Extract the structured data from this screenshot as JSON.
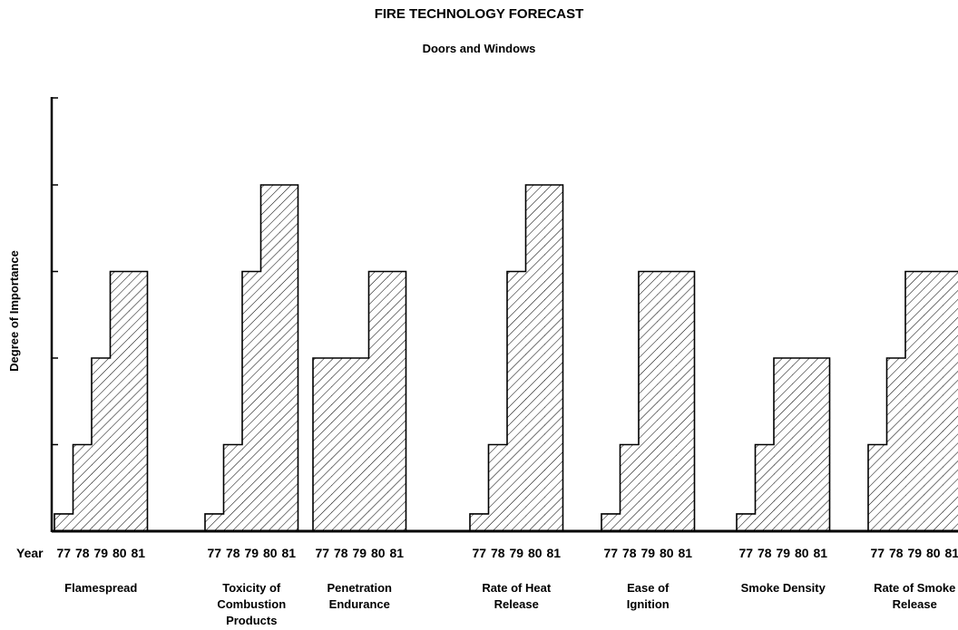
{
  "chart_data": {
    "type": "bar",
    "title": "FIRE TECHNOLOGY FORECAST",
    "subtitle": "Doors and Windows",
    "ylabel": "Degree of Importance",
    "xlabel": "Year",
    "ylim": [
      0,
      5
    ],
    "years": [
      "77",
      "78",
      "79",
      "80",
      "81"
    ],
    "groups": [
      {
        "name": [
          "Flamespread"
        ],
        "values": [
          0.2,
          1,
          2,
          3,
          3
        ]
      },
      {
        "name": [
          "Toxicity of",
          "Combustion",
          "Products"
        ],
        "values": [
          0.2,
          1,
          3,
          4,
          4
        ]
      },
      {
        "name": [
          "Penetration",
          "Endurance"
        ],
        "values": [
          2,
          2,
          2,
          3,
          3
        ]
      },
      {
        "name": [
          "Rate of Heat",
          "Release"
        ],
        "values": [
          0.2,
          1,
          3,
          4,
          4
        ]
      },
      {
        "name": [
          "Ease of",
          "Ignition"
        ],
        "values": [
          0.2,
          1,
          3,
          3,
          3
        ]
      },
      {
        "name": [
          "Smoke Density"
        ],
        "values": [
          0.2,
          1,
          2,
          2,
          2
        ]
      },
      {
        "name": [
          "Rate of Smoke",
          "Release"
        ],
        "values": [
          1,
          2,
          3,
          3,
          3
        ]
      }
    ]
  }
}
